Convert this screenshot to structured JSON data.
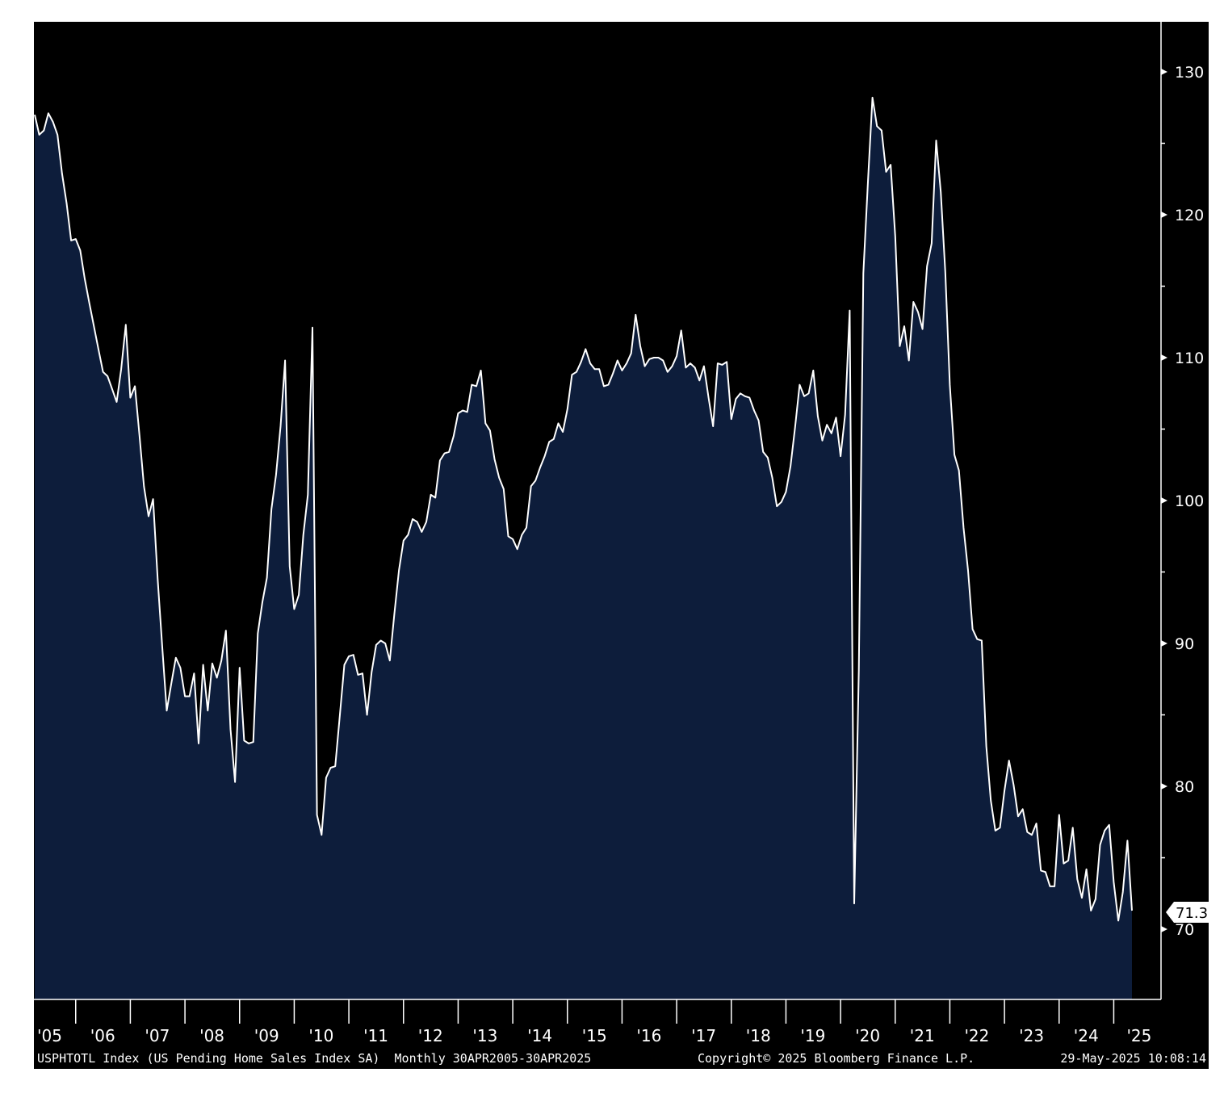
{
  "chart_data": {
    "type": "area",
    "title": "",
    "xlabel": "",
    "ylabel": "",
    "frequency": "Monthly",
    "x_start": "2005-04",
    "x_end": "2025-04",
    "ylim": [
      65,
      132
    ],
    "yticks": [
      70,
      80,
      90,
      100,
      110,
      120,
      130
    ],
    "ytick_labels": [
      "70",
      "80",
      "90",
      "100",
      "110",
      "120",
      "130"
    ],
    "xtick_labels": [
      "'05",
      "'06",
      "'07",
      "'08",
      "'09",
      "'10",
      "'11",
      "'12",
      "'13",
      "'14",
      "'15",
      "'16",
      "'17",
      "'18",
      "'19",
      "'20",
      "'21",
      "'22",
      "'23",
      "'24",
      "'25"
    ],
    "grid": false,
    "legend": "none",
    "series": [
      {
        "values": [
          127.0,
          125.6,
          125.9,
          127.1,
          126.5,
          125.6,
          122.9,
          120.8,
          118.2,
          118.3,
          117.5,
          115.5,
          113.8,
          112.2,
          110.6,
          109.0,
          108.7,
          107.8,
          106.9,
          109.2,
          112.3,
          107.2,
          108.0,
          104.6,
          101.0,
          98.9,
          100.1,
          94.5,
          89.8,
          85.3,
          87.2,
          89.0,
          88.3,
          86.3,
          86.3,
          87.9,
          83.0,
          88.5,
          85.3,
          88.6,
          87.6,
          88.8,
          90.9,
          84.0,
          80.3,
          88.3,
          83.2,
          83.0,
          83.1,
          90.7,
          92.9,
          94.6,
          99.4,
          101.8,
          105.2,
          109.8,
          95.4,
          92.4,
          93.4,
          97.6,
          100.4,
          112.1,
          78.0,
          76.6,
          80.6,
          81.3,
          81.4,
          84.9,
          88.5,
          89.1,
          89.2,
          87.8,
          87.9,
          85.0,
          88.0,
          89.9,
          90.2,
          90.0,
          88.8,
          92.1,
          95.1,
          97.2,
          97.6,
          98.7,
          98.5,
          97.8,
          98.5,
          100.4,
          100.2,
          102.8,
          103.3,
          103.4,
          104.5,
          106.1,
          106.3,
          106.2,
          108.1,
          108.0,
          109.1,
          105.4,
          104.9,
          102.9,
          101.6,
          100.8,
          97.5,
          97.3,
          96.6,
          97.6,
          98.1,
          101.0,
          101.4,
          102.3,
          103.1,
          104.1,
          104.3,
          105.4,
          104.8,
          106.4,
          108.8,
          109.0,
          109.7,
          110.6,
          109.6,
          109.2,
          109.2,
          108.0,
          108.1,
          108.9,
          109.8,
          109.1,
          109.6,
          110.3,
          113.0,
          110.8,
          109.4,
          109.9,
          110.0,
          110.0,
          109.8,
          109.0,
          109.4,
          110.1,
          111.9,
          109.3,
          109.6,
          109.3,
          108.4,
          109.4,
          107.2,
          105.2,
          109.6,
          109.5,
          109.7,
          105.7,
          107.1,
          107.5,
          107.3,
          107.2,
          106.3,
          105.6,
          103.4,
          103.0,
          101.6,
          99.6,
          99.9,
          100.6,
          102.4,
          105.1,
          108.1,
          107.3,
          107.5,
          109.1,
          105.9,
          104.2,
          105.3,
          104.7,
          105.8,
          103.1,
          106.0,
          113.3,
          71.8,
          88.1,
          115.9,
          122.2,
          128.2,
          126.2,
          125.9,
          123.0,
          123.5,
          118.5,
          110.8,
          112.2,
          109.8,
          113.9,
          113.2,
          112.0,
          116.4,
          118.0,
          125.2,
          121.6,
          116.0,
          108.1,
          103.2,
          102.1,
          98.1,
          95.1,
          91.0,
          90.3,
          90.2,
          82.8,
          79.0,
          76.9,
          77.1,
          79.7,
          81.8,
          80.1,
          77.9,
          78.4,
          76.8,
          76.6,
          77.4,
          74.1,
          74.0,
          73.0,
          73.0,
          78.0,
          74.6,
          74.8,
          77.1,
          73.5,
          72.2,
          74.2,
          71.3,
          72.1,
          75.9,
          76.9,
          77.3,
          73.3,
          70.6,
          72.6,
          76.2,
          71.3
        ]
      }
    ],
    "last_value_label": "71.3",
    "footer": {
      "ticker_description": "USPHTOTL Index (US Pending Home Sales Index SA)  Monthly 30APR2005-30APR2025",
      "copyright": "Copyright© 2025 Bloomberg Finance L.P.",
      "timestamp": "29-May-2025 10:08:14"
    }
  },
  "colors": {
    "background": "#000000",
    "area_fill": "#0d1d3b",
    "line": "#ffffff",
    "axis": "#ffffff"
  }
}
